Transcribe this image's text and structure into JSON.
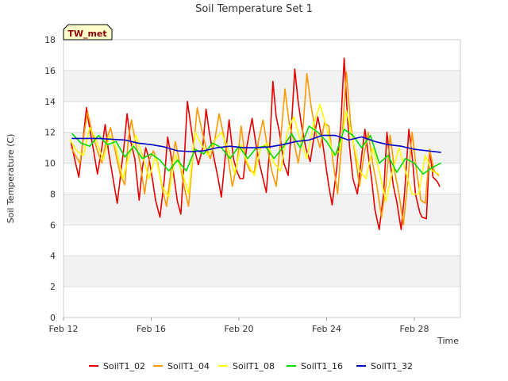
{
  "chart_data": {
    "type": "line",
    "title": "Soil Temperature Set 1",
    "xlabel": "Time",
    "ylabel": "Soil Temperature (C)",
    "badge": "TW_met",
    "x_ticks": [
      "Feb 12",
      "Feb 16",
      "Feb 20",
      "Feb 24",
      "Feb 28"
    ],
    "x_tick_days": [
      12,
      16,
      20,
      24,
      28
    ],
    "xlim": [
      12,
      30.1
    ],
    "ylim": [
      0,
      18
    ],
    "y_ticks": [
      0,
      2,
      4,
      6,
      8,
      10,
      12,
      14,
      16,
      18
    ],
    "grid": true,
    "legend_position": "bottom",
    "series": [
      {
        "name": "SoilT1_02",
        "color": "#e60000",
        "x": [
          12.35,
          12.55,
          12.7,
          12.85,
          13.05,
          13.2,
          13.35,
          13.55,
          13.75,
          13.9,
          14.05,
          14.2,
          14.45,
          14.75,
          14.9,
          15.05,
          15.25,
          15.45,
          15.6,
          15.75,
          15.9,
          16.05,
          16.2,
          16.4,
          16.6,
          16.75,
          16.9,
          17.05,
          17.2,
          17.35,
          17.5,
          17.65,
          17.8,
          17.95,
          18.15,
          18.35,
          18.5,
          18.65,
          18.8,
          19.05,
          19.2,
          19.35,
          19.55,
          19.75,
          19.9,
          20.05,
          20.2,
          20.35,
          20.6,
          20.8,
          20.95,
          21.1,
          21.25,
          21.4,
          21.55,
          21.7,
          21.85,
          22.05,
          22.25,
          22.4,
          22.55,
          22.7,
          22.85,
          23.05,
          23.25,
          23.4,
          23.6,
          23.8,
          23.95,
          24.1,
          24.25,
          24.45,
          24.65,
          24.8,
          24.95,
          25.05,
          25.2,
          25.4,
          25.6,
          25.75,
          25.9,
          26.05,
          26.2,
          26.4,
          26.6,
          26.75,
          26.9,
          27.05,
          27.2,
          27.4,
          27.55,
          27.75,
          27.9,
          28.05,
          28.25,
          28.35,
          28.55,
          28.7,
          28.85,
          29.05,
          29.15
        ],
        "y": [
          11.3,
          10.0,
          9.1,
          11.0,
          13.6,
          12.2,
          11.0,
          9.3,
          11.0,
          12.5,
          10.8,
          9.5,
          7.4,
          11.0,
          13.2,
          11.5,
          10.3,
          7.6,
          9.7,
          11.0,
          10.3,
          9.0,
          7.6,
          6.5,
          9.0,
          11.7,
          10.5,
          9.0,
          7.5,
          6.7,
          10.0,
          14.0,
          12.5,
          11.0,
          9.9,
          11.0,
          13.5,
          12.0,
          10.8,
          9.0,
          7.8,
          10.0,
          12.8,
          10.3,
          9.5,
          9.0,
          9.0,
          11.0,
          12.9,
          11.0,
          9.9,
          9.0,
          8.1,
          11.0,
          15.3,
          13.0,
          12.0,
          10.0,
          9.2,
          12.5,
          16.1,
          14.0,
          12.5,
          11.0,
          10.1,
          11.5,
          13.0,
          11.5,
          10.0,
          8.5,
          7.3,
          9.5,
          12.5,
          16.8,
          13.0,
          11.0,
          9.0,
          8.0,
          10.5,
          12.2,
          10.5,
          9.0,
          7.0,
          5.7,
          8.0,
          12.0,
          10.0,
          8.5,
          7.5,
          5.7,
          8.0,
          12.2,
          10.5,
          8.0,
          6.8,
          6.5,
          6.4,
          10.9,
          9.1,
          8.8,
          8.5
        ]
      },
      {
        "name": "SoilT1_04",
        "color": "#ff9900",
        "x": [
          12.35,
          12.55,
          12.75,
          12.95,
          13.1,
          13.3,
          13.55,
          13.75,
          13.95,
          14.15,
          14.4,
          14.6,
          14.8,
          14.95,
          15.1,
          15.3,
          15.5,
          15.7,
          15.9,
          16.1,
          16.3,
          16.5,
          16.7,
          16.9,
          17.1,
          17.3,
          17.5,
          17.7,
          17.9,
          18.1,
          18.3,
          18.5,
          18.7,
          18.9,
          19.1,
          19.3,
          19.5,
          19.7,
          19.9,
          20.1,
          20.3,
          20.5,
          20.7,
          20.9,
          21.1,
          21.3,
          21.5,
          21.7,
          21.9,
          22.1,
          22.3,
          22.5,
          22.7,
          22.9,
          23.1,
          23.3,
          23.5,
          23.7,
          23.9,
          24.1,
          24.3,
          24.5,
          24.7,
          24.9,
          25.1,
          25.3,
          25.5,
          25.7,
          25.9,
          26.1,
          26.3,
          26.5,
          26.7,
          26.9,
          27.1,
          27.3,
          27.5,
          27.7,
          27.9,
          28.1,
          28.3,
          28.5,
          28.7,
          28.9,
          29.1
        ],
        "y": [
          11.0,
          10.5,
          10.0,
          12.0,
          13.3,
          12.0,
          10.8,
          10.0,
          11.5,
          12.3,
          10.5,
          9.2,
          8.6,
          11.5,
          12.8,
          11.2,
          10.0,
          8.0,
          10.2,
          10.8,
          10.0,
          8.4,
          7.2,
          9.5,
          11.4,
          10.0,
          8.5,
          7.2,
          10.5,
          13.6,
          12.2,
          11.0,
          10.3,
          11.5,
          13.2,
          11.8,
          10.4,
          8.5,
          9.8,
          12.4,
          10.2,
          9.5,
          9.4,
          11.5,
          12.8,
          11.0,
          9.5,
          8.5,
          11.5,
          14.8,
          12.5,
          11.5,
          10.0,
          11.8,
          15.8,
          13.6,
          12.0,
          11.0,
          12.6,
          12.4,
          10.0,
          8.0,
          11.5,
          15.9,
          12.5,
          10.5,
          8.5,
          10.5,
          12.0,
          10.0,
          8.5,
          6.5,
          8.5,
          11.8,
          9.5,
          8.0,
          6.0,
          8.8,
          12.0,
          9.5,
          7.6,
          7.4,
          10.9,
          9.5,
          9.2
        ]
      },
      {
        "name": "SoilT1_08",
        "color": "#ffff00",
        "x": [
          12.3,
          12.6,
          12.9,
          13.2,
          13.5,
          13.8,
          14.1,
          14.4,
          14.7,
          15.0,
          15.3,
          15.6,
          15.9,
          16.2,
          16.5,
          16.8,
          17.1,
          17.4,
          17.7,
          18.0,
          18.3,
          18.6,
          18.9,
          19.2,
          19.5,
          19.8,
          20.1,
          20.4,
          20.7,
          21.0,
          21.3,
          21.6,
          21.9,
          22.2,
          22.5,
          22.8,
          23.1,
          23.4,
          23.7,
          24.0,
          24.3,
          24.6,
          24.9,
          25.2,
          25.5,
          25.8,
          26.1,
          26.4,
          26.7,
          27.0,
          27.3,
          27.6,
          27.9,
          28.2,
          28.5,
          28.8,
          29.1
        ],
        "y": [
          11.5,
          10.8,
          10.5,
          12.3,
          11.5,
          10.2,
          11.8,
          11.0,
          9.0,
          10.5,
          11.8,
          10.5,
          9.0,
          10.5,
          8.5,
          7.8,
          10.5,
          9.5,
          8.0,
          12.0,
          11.2,
          10.5,
          11.5,
          12.0,
          11.0,
          9.3,
          11.2,
          10.0,
          9.2,
          11.0,
          11.3,
          10.0,
          9.5,
          12.0,
          13.0,
          11.5,
          10.3,
          12.5,
          13.8,
          12.3,
          10.5,
          10.8,
          13.4,
          11.5,
          9.5,
          9.0,
          11.0,
          9.5,
          7.5,
          9.5,
          11.0,
          9.5,
          8.0,
          8.0,
          10.5,
          9.5,
          9.3
        ]
      },
      {
        "name": "SoilT1_16",
        "color": "#00dd00",
        "x": [
          12.4,
          12.8,
          13.2,
          13.6,
          14.0,
          14.4,
          14.8,
          15.2,
          15.6,
          16.0,
          16.4,
          16.8,
          17.2,
          17.6,
          18.0,
          18.4,
          18.8,
          19.2,
          19.6,
          20.0,
          20.4,
          20.8,
          21.2,
          21.6,
          22.0,
          22.4,
          22.8,
          23.2,
          23.6,
          24.0,
          24.4,
          24.8,
          25.2,
          25.6,
          26.0,
          26.4,
          26.8,
          27.2,
          27.6,
          28.0,
          28.4,
          28.8,
          29.2
        ],
        "y": [
          11.9,
          11.3,
          11.1,
          11.8,
          11.2,
          11.4,
          10.4,
          11.1,
          10.3,
          10.6,
          10.2,
          9.5,
          10.2,
          9.5,
          10.9,
          10.6,
          11.3,
          11.0,
          10.3,
          11.1,
          10.3,
          11.0,
          11.1,
          10.3,
          11.0,
          11.9,
          11.0,
          12.4,
          12.0,
          11.4,
          10.5,
          12.2,
          11.8,
          11.0,
          11.8,
          10.0,
          10.5,
          9.4,
          10.3,
          10.0,
          9.3,
          9.7,
          10.0
        ]
      },
      {
        "name": "SoilT1_32",
        "color": "#0000cc",
        "x": [
          12.4,
          13.0,
          13.6,
          14.2,
          14.8,
          15.4,
          16.0,
          16.6,
          17.2,
          17.8,
          18.4,
          19.0,
          19.6,
          20.2,
          20.8,
          21.4,
          22.0,
          22.6,
          23.2,
          23.8,
          24.4,
          25.0,
          25.6,
          26.2,
          26.8,
          27.4,
          28.0,
          28.6,
          29.2
        ],
        "y": [
          11.6,
          11.6,
          11.6,
          11.55,
          11.5,
          11.3,
          11.2,
          11.05,
          10.8,
          10.75,
          10.8,
          11.0,
          11.1,
          11.0,
          11.0,
          11.05,
          11.2,
          11.4,
          11.5,
          11.8,
          11.8,
          11.5,
          11.7,
          11.4,
          11.2,
          11.1,
          10.9,
          10.8,
          10.7
        ]
      }
    ]
  }
}
